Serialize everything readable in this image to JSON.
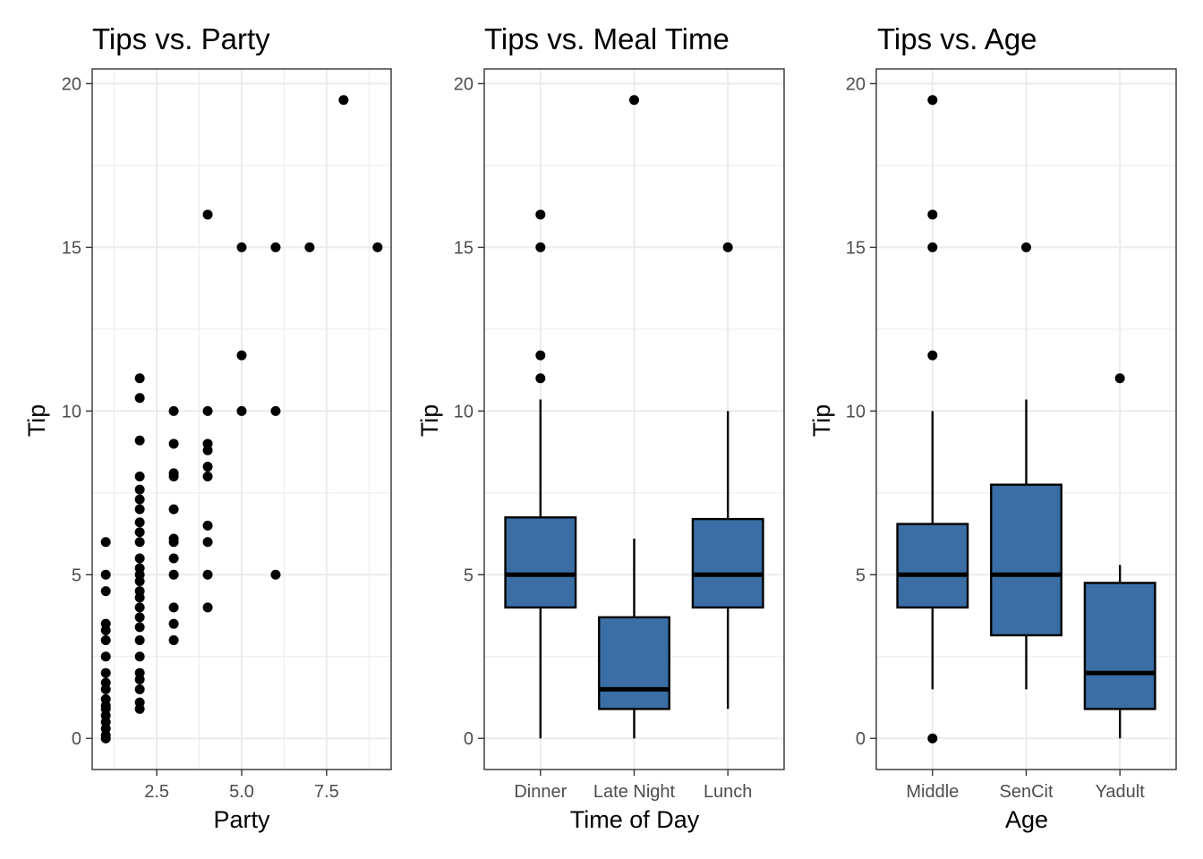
{
  "chart_data": [
    {
      "type": "scatter",
      "title": "Tips vs. Party",
      "xlabel": "Party",
      "ylabel": "Tip",
      "xlim": [
        0.6,
        9.4
      ],
      "ylim": [
        -0.95,
        20.45
      ],
      "xticks": [
        2.5,
        5.0,
        7.5
      ],
      "xtick_labels": [
        "2.5",
        "5.0",
        "7.5"
      ],
      "yticks": [
        0,
        5,
        10,
        15,
        20
      ],
      "ytick_labels": [
        "0",
        "5",
        "10",
        "15",
        "20"
      ],
      "grid": true,
      "points": [
        [
          1,
          0
        ],
        [
          1,
          0.1
        ],
        [
          1,
          0.3
        ],
        [
          1,
          0.5
        ],
        [
          1,
          0.7
        ],
        [
          1,
          0.9
        ],
        [
          1,
          1.0
        ],
        [
          1,
          1.2
        ],
        [
          1,
          1.5
        ],
        [
          1,
          1.7
        ],
        [
          1,
          2.0
        ],
        [
          1,
          2.5
        ],
        [
          1,
          3.0
        ],
        [
          1,
          3.3
        ],
        [
          1,
          3.5
        ],
        [
          1,
          4.5
        ],
        [
          1,
          5.0
        ],
        [
          1,
          6.0
        ],
        [
          2,
          0.9
        ],
        [
          2,
          1.1
        ],
        [
          2,
          1.5
        ],
        [
          2,
          1.8
        ],
        [
          2,
          2.0
        ],
        [
          2,
          2.5
        ],
        [
          2,
          3.0
        ],
        [
          2,
          3.4
        ],
        [
          2,
          3.7
        ],
        [
          2,
          4.0
        ],
        [
          2,
          4.3
        ],
        [
          2,
          4.5
        ],
        [
          2,
          4.8
        ],
        [
          2,
          5.0
        ],
        [
          2,
          5.2
        ],
        [
          2,
          5.5
        ],
        [
          2,
          6.0
        ],
        [
          2,
          6.3
        ],
        [
          2,
          6.6
        ],
        [
          2,
          7.0
        ],
        [
          2,
          7.3
        ],
        [
          2,
          7.6
        ],
        [
          2,
          8.0
        ],
        [
          2,
          9.1
        ],
        [
          2,
          10.4
        ],
        [
          2,
          11.0
        ],
        [
          3,
          3.0
        ],
        [
          3,
          3.5
        ],
        [
          3,
          4.0
        ],
        [
          3,
          5.0
        ],
        [
          3,
          5.5
        ],
        [
          3,
          6.0
        ],
        [
          3,
          6.1
        ],
        [
          3,
          7.0
        ],
        [
          3,
          8.0
        ],
        [
          3,
          8.1
        ],
        [
          3,
          9.0
        ],
        [
          3,
          10.0
        ],
        [
          4,
          4.0
        ],
        [
          4,
          5.0
        ],
        [
          4,
          6.0
        ],
        [
          4,
          6.5
        ],
        [
          4,
          8.0
        ],
        [
          4,
          8.3
        ],
        [
          4,
          8.8
        ],
        [
          4,
          9.0
        ],
        [
          4,
          10.0
        ],
        [
          4,
          16.0
        ],
        [
          5,
          10.0
        ],
        [
          5,
          11.7
        ],
        [
          5,
          15.0
        ],
        [
          6,
          5.0
        ],
        [
          6,
          10.0
        ],
        [
          6,
          15.0
        ],
        [
          7,
          15.0
        ],
        [
          8,
          19.5
        ],
        [
          9,
          15.0
        ]
      ]
    },
    {
      "type": "box",
      "title": "Tips vs. Meal Time",
      "xlabel": "Time of Day",
      "ylabel": "Tip",
      "ylim": [
        -0.95,
        20.45
      ],
      "yticks": [
        0,
        5,
        10,
        15,
        20
      ],
      "ytick_labels": [
        "0",
        "5",
        "10",
        "15",
        "20"
      ],
      "categories": [
        "Dinner",
        "Late Night",
        "Lunch"
      ],
      "boxes": [
        {
          "category": "Dinner",
          "whisker_low": 0,
          "q1": 4.0,
          "median": 5.0,
          "q3": 6.75,
          "whisker_high": 10.35,
          "outliers": [
            11.0,
            11.7,
            15.0,
            16.0
          ]
        },
        {
          "category": "Late Night",
          "whisker_low": 0,
          "q1": 0.9,
          "median": 1.5,
          "q3": 3.7,
          "whisker_high": 6.1,
          "outliers": [
            19.5
          ]
        },
        {
          "category": "Lunch",
          "whisker_low": 0.9,
          "q1": 4.0,
          "median": 5.0,
          "q3": 6.7,
          "whisker_high": 10.0,
          "outliers": [
            15.0
          ]
        }
      ],
      "fill": "#3a6ea5",
      "grid": true
    },
    {
      "type": "box",
      "title": "Tips vs. Age",
      "xlabel": "Age",
      "ylabel": "Tip",
      "ylim": [
        -0.95,
        20.45
      ],
      "yticks": [
        0,
        5,
        10,
        15,
        20
      ],
      "ytick_labels": [
        "0",
        "5",
        "10",
        "15",
        "20"
      ],
      "categories": [
        "Middle",
        "SenCit",
        "Yadult"
      ],
      "boxes": [
        {
          "category": "Middle",
          "whisker_low": 1.5,
          "q1": 4.0,
          "median": 5.0,
          "q3": 6.55,
          "whisker_high": 10.0,
          "outliers": [
            0,
            11.7,
            15.0,
            16.0,
            19.5
          ]
        },
        {
          "category": "SenCit",
          "whisker_low": 1.5,
          "q1": 3.15,
          "median": 5.0,
          "q3": 7.75,
          "whisker_high": 10.35,
          "outliers": [
            15.0
          ]
        },
        {
          "category": "Yadult",
          "whisker_low": 0,
          "q1": 0.9,
          "median": 2.0,
          "q3": 4.75,
          "whisker_high": 5.3,
          "outliers": [
            11.0
          ]
        }
      ],
      "fill": "#3a6ea5",
      "grid": true
    }
  ]
}
